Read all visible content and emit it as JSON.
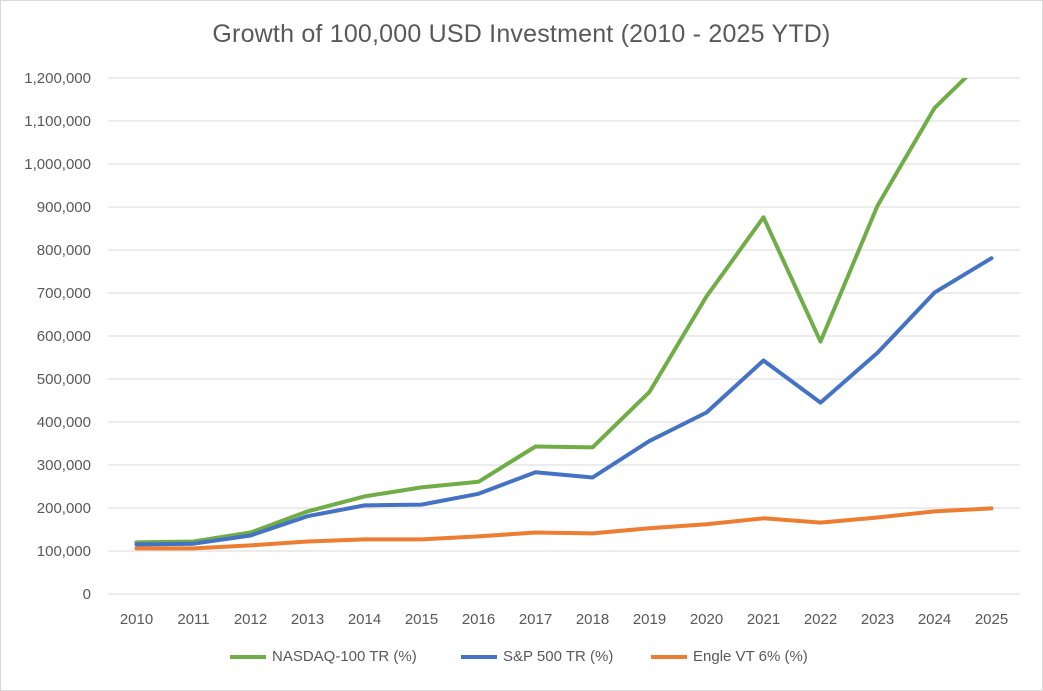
{
  "chart_data": {
    "type": "line",
    "title": "Growth of 100,000 USD Investment (2010 - 2025 YTD)",
    "xlabel": "",
    "ylabel": "",
    "x": [
      "2010",
      "2011",
      "2012",
      "2013",
      "2014",
      "2015",
      "2016",
      "2017",
      "2018",
      "2019",
      "2020",
      "2021",
      "2022",
      "2023",
      "2024",
      "2025"
    ],
    "ylim": [
      0,
      1200000
    ],
    "yticks": [
      0,
      100000,
      200000,
      300000,
      400000,
      500000,
      600000,
      700000,
      800000,
      900000,
      1000000,
      1100000,
      1200000
    ],
    "ytick_labels": [
      "0",
      "100,000",
      "200,000",
      "300,000",
      "400,000",
      "500,000",
      "600,000",
      "700,000",
      "800,000",
      "900,000",
      "1,000,000",
      "1,100,000",
      "1,200,000"
    ],
    "grid": true,
    "legend_position": "bottom",
    "series": [
      {
        "name": "NASDAQ-100 TR (%)",
        "color": "#70ad47",
        "values": [
          120000,
          122000,
          143000,
          192000,
          227000,
          248000,
          261000,
          343000,
          341000,
          470000,
          692000,
          876000,
          587000,
          903000,
          1130000,
          1260000
        ]
      },
      {
        "name": "S&P 500 TR (%)",
        "color": "#4472c4",
        "values": [
          115000,
          117000,
          136000,
          181000,
          206000,
          208000,
          233000,
          283000,
          271000,
          356000,
          422000,
          543000,
          445000,
          561000,
          701000,
          781000
        ]
      },
      {
        "name": "Engle VT 6% (%)",
        "color": "#ed7d31",
        "values": [
          106000,
          106000,
          113000,
          122000,
          127000,
          127000,
          134000,
          143000,
          141000,
          153000,
          162000,
          176000,
          166000,
          178000,
          192000,
          199000
        ]
      }
    ]
  }
}
